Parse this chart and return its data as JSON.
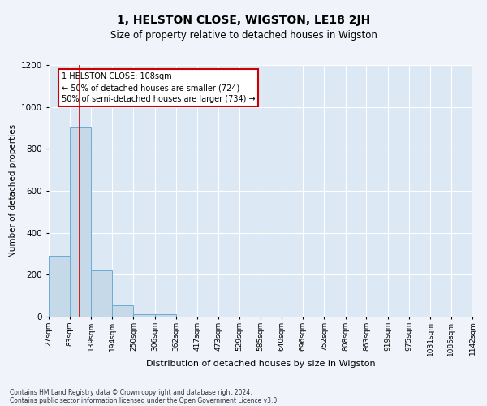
{
  "title": "1, HELSTON CLOSE, WIGSTON, LE18 2JH",
  "subtitle": "Size of property relative to detached houses in Wigston",
  "xlabel": "Distribution of detached houses by size in Wigston",
  "ylabel": "Number of detached properties",
  "annotation_line1": "1 HELSTON CLOSE: 108sqm",
  "annotation_line2": "← 50% of detached houses are smaller (724)",
  "annotation_line3": "50% of semi-detached houses are larger (734) →",
  "footnote1": "Contains HM Land Registry data © Crown copyright and database right 2024.",
  "footnote2": "Contains public sector information licensed under the Open Government Licence v3.0.",
  "bin_edges": [
    27,
    83,
    139,
    194,
    250,
    306,
    362,
    417,
    473,
    529,
    585,
    640,
    696,
    752,
    808,
    863,
    919,
    975,
    1031,
    1086,
    1142
  ],
  "bin_labels": [
    "27sqm",
    "83sqm",
    "139sqm",
    "194sqm",
    "250sqm",
    "306sqm",
    "362sqm",
    "417sqm",
    "473sqm",
    "529sqm",
    "585sqm",
    "640sqm",
    "696sqm",
    "752sqm",
    "808sqm",
    "863sqm",
    "919sqm",
    "975sqm",
    "1031sqm",
    "1086sqm",
    "1142sqm"
  ],
  "bar_heights": [
    290,
    900,
    220,
    55,
    10,
    10,
    0,
    0,
    0,
    0,
    0,
    0,
    0,
    0,
    0,
    0,
    0,
    0,
    0,
    0
  ],
  "bar_color": "#c5d9e8",
  "bar_edgecolor": "#6aaad4",
  "redline_x": 108,
  "ylim": [
    0,
    1200
  ],
  "xlim": [
    27,
    1142
  ],
  "plot_bg_color": "#dce9f5",
  "grid_color": "#ffffff",
  "fig_bg_color": "#f0f4fa",
  "annotation_box_color": "#ffffff",
  "annotation_box_edgecolor": "#cc0000",
  "redline_color": "#cc0000",
  "title_fontsize": 10,
  "subtitle_fontsize": 8.5,
  "xlabel_fontsize": 8,
  "ylabel_fontsize": 7.5,
  "tick_fontsize": 6.5,
  "annotation_fontsize": 7,
  "footnote_fontsize": 5.5
}
